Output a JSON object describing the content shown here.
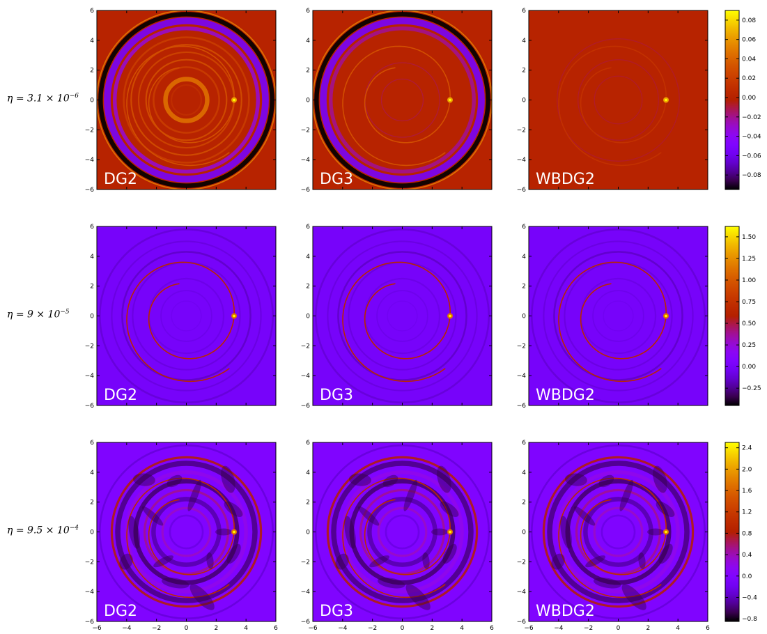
{
  "chart_data": [
    {
      "type": "heatmap",
      "row_label": {
        "symbol": "η",
        "text": "η = 3.1 × 10",
        "mantissa": "3.1",
        "exponent": "−6"
      },
      "colorbar": {
        "ticks": [
          "0.08",
          "0.06",
          "0.04",
          "0.02",
          "0.00",
          "−0.02",
          "−0.04",
          "−0.06",
          "−0.08"
        ],
        "tick_values": [
          0.08,
          0.06,
          0.04,
          0.02,
          0.0,
          -0.02,
          -0.04,
          -0.06,
          -0.08
        ],
        "vmin": -0.095,
        "vmax": 0.09
      },
      "panels": [
        {
          "label": "DG2",
          "pattern": "rings_strong"
        },
        {
          "label": "DG3",
          "pattern": "rings_edge"
        },
        {
          "label": "WBDG2",
          "pattern": "faint"
        }
      ]
    },
    {
      "type": "heatmap",
      "row_label": {
        "symbol": "η",
        "text": "η = 9 × 10",
        "mantissa": "9",
        "exponent": "−5"
      },
      "colorbar": {
        "ticks": [
          "1.50",
          "1.25",
          "1.00",
          "0.75",
          "0.50",
          "0.25",
          "0.00",
          "−0.25"
        ],
        "tick_values": [
          1.5,
          1.25,
          1.0,
          0.75,
          0.5,
          0.25,
          0.0,
          -0.25
        ],
        "vmin": -0.45,
        "vmax": 1.62
      },
      "panels": [
        {
          "label": "DG2",
          "pattern": "spiral_faint"
        },
        {
          "label": "DG3",
          "pattern": "spiral_faint"
        },
        {
          "label": "WBDG2",
          "pattern": "spiral_faint"
        }
      ]
    },
    {
      "type": "heatmap",
      "row_label": {
        "symbol": "η",
        "text": "η = 9.5 × 10",
        "mantissa": "9.5",
        "exponent": "−4"
      },
      "colorbar": {
        "ticks": [
          "2.4",
          "2.0",
          "1.6",
          "1.2",
          "0.8",
          "0.4",
          "0.0",
          "−0.4",
          "−0.8"
        ],
        "tick_values": [
          2.4,
          2.0,
          1.6,
          1.2,
          0.8,
          0.4,
          0.0,
          -0.4,
          -0.8
        ],
        "vmin": -0.85,
        "vmax": 2.5
      },
      "panels": [
        {
          "label": "DG2",
          "pattern": "turbulent"
        },
        {
          "label": "DG3",
          "pattern": "turbulent"
        },
        {
          "label": "WBDG2",
          "pattern": "turbulent"
        }
      ]
    }
  ],
  "axes": {
    "xlim": [
      -6,
      6
    ],
    "ylim": [
      -6,
      6
    ],
    "x_ticks": [
      "−6",
      "−4",
      "−2",
      "0",
      "2",
      "4",
      "6"
    ],
    "y_ticks": [
      "6",
      "4",
      "2",
      "0",
      "−2",
      "−4",
      "−6"
    ],
    "tick_values": [
      -6,
      -4,
      -2,
      0,
      2,
      4,
      6
    ]
  },
  "colormap": "gnuplot",
  "colors": {
    "panel_label": "#ffffff",
    "axis": "#000000"
  }
}
